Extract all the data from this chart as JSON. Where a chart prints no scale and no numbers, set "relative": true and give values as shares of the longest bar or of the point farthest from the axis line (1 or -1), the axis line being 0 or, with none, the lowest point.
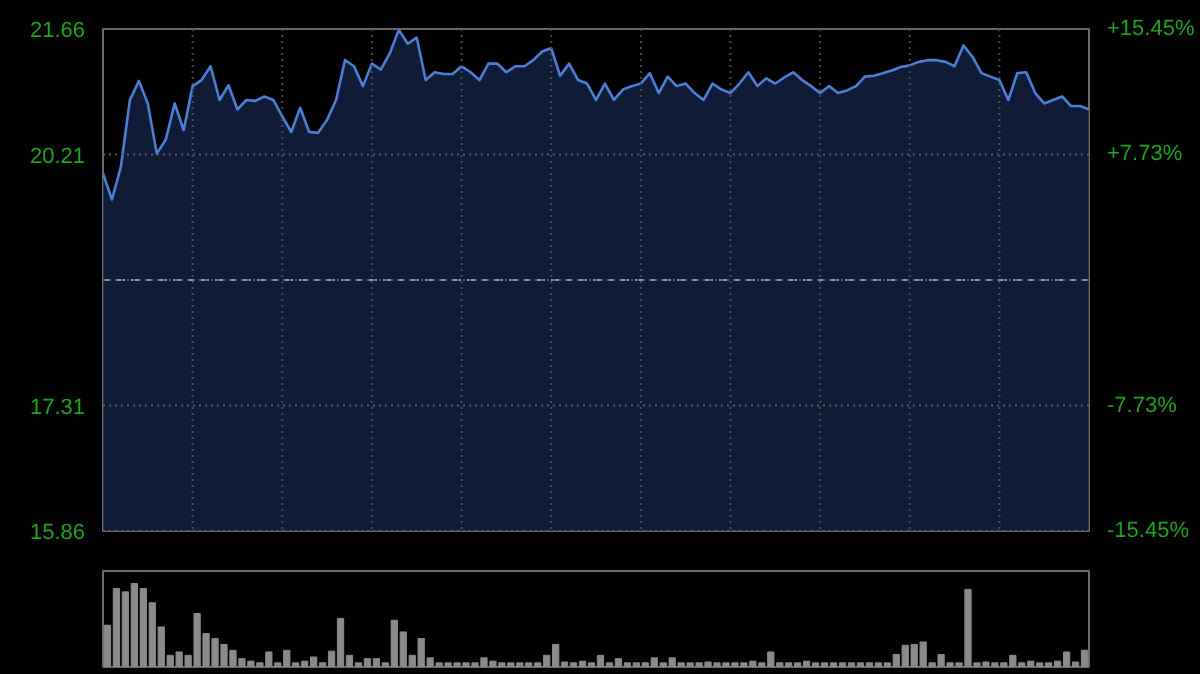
{
  "chart_data": [
    {
      "type": "area",
      "categories": [
        null,
        null,
        null,
        null,
        null,
        null,
        null,
        null,
        null,
        null,
        null,
        null,
        null,
        null,
        null,
        null,
        null,
        null,
        null,
        null,
        null,
        null,
        null,
        null,
        null,
        null,
        null,
        null,
        null,
        null,
        null,
        null,
        null,
        null,
        null,
        null,
        null,
        null,
        null,
        null,
        null,
        null,
        null,
        null,
        null,
        null,
        null,
        null,
        null,
        null,
        null,
        null,
        null,
        null,
        null,
        null,
        null,
        null,
        null,
        null,
        null,
        null,
        null,
        null,
        null,
        null,
        null,
        null,
        null,
        null,
        null,
        null,
        null,
        null,
        null,
        null,
        null,
        null,
        null,
        null,
        null,
        null,
        null,
        null,
        null,
        null,
        null,
        null,
        null,
        null,
        null,
        null,
        null,
        null,
        null,
        null,
        null,
        null,
        null,
        null,
        null,
        null,
        null,
        null,
        null,
        null,
        null,
        null,
        null,
        null,
        null
      ],
      "series": [
        {
          "color": "#4a7fd4",
          "values": [
            19.99,
            19.69,
            20.07,
            20.84,
            21.06,
            20.8,
            20.22,
            20.38,
            20.8,
            20.49,
            21.0,
            21.07,
            21.23,
            20.84,
            21.01,
            20.73,
            20.84,
            20.83,
            20.88,
            20.84,
            20.65,
            20.47,
            20.75,
            20.47,
            20.46,
            20.61,
            20.84,
            21.3,
            21.23,
            21.0,
            21.26,
            21.19,
            21.38,
            21.65,
            21.49,
            21.56,
            21.07,
            21.16,
            21.14,
            21.14,
            21.23,
            21.16,
            21.07,
            21.26,
            21.26,
            21.16,
            21.23,
            21.23,
            21.3,
            21.4,
            21.44,
            21.12,
            21.26,
            21.07,
            21.03,
            20.84,
            21.03,
            20.84,
            20.96,
            21.0,
            21.03,
            21.15,
            20.92,
            21.11,
            21.0,
            21.03,
            20.92,
            20.84,
            21.03,
            20.96,
            20.92,
            21.03,
            21.16,
            21.0,
            21.09,
            21.03,
            21.1,
            21.16,
            21.07,
            21.0,
            20.92,
            21.0,
            20.92,
            20.95,
            21.0,
            21.11,
            21.12,
            21.15,
            21.18,
            21.22,
            21.24,
            21.28,
            21.3,
            21.3,
            21.28,
            21.23,
            21.47,
            21.34,
            21.15,
            21.11,
            21.07,
            20.84,
            21.15,
            21.16,
            20.92,
            20.8,
            20.84,
            20.88,
            20.77,
            20.77,
            20.73
          ]
        }
      ],
      "ylim": [
        15.86,
        21.66
      ],
      "yticks": [
        15.86,
        17.31,
        {
          "value": 18.76,
          "label": null
        },
        20.21,
        21.66
      ],
      "y2lim": [
        -15.45,
        15.45
      ],
      "y2ticks": [
        {
          "value": -15.45,
          "label": "-15.45%"
        },
        {
          "value": -7.73,
          "label": "-7.73%"
        },
        {
          "value": 0,
          "label": null
        },
        {
          "value": 7.73,
          "label": "+7.73%"
        },
        {
          "value": 15.45,
          "label": "+15.45%"
        }
      ],
      "ref_lines": [
        {
          "axis": "y",
          "value": 18.76,
          "color": "#7f9fb0",
          "line_style": "dashed"
        }
      ],
      "grid": true,
      "tick_labels": "y"
    },
    {
      "type": "bar",
      "relative": true,
      "categories": [
        null,
        null,
        null,
        null,
        null,
        null,
        null,
        null,
        null,
        null,
        null,
        null,
        null,
        null,
        null,
        null,
        null,
        null,
        null,
        null,
        null,
        null,
        null,
        null,
        null,
        null,
        null,
        null,
        null,
        null,
        null,
        null,
        null,
        null,
        null,
        null,
        null,
        null,
        null,
        null,
        null,
        null,
        null,
        null,
        null,
        null,
        null,
        null,
        null,
        null,
        null,
        null,
        null,
        null,
        null,
        null,
        null,
        null,
        null,
        null,
        null,
        null,
        null,
        null,
        null,
        null,
        null,
        null,
        null,
        null,
        null,
        null,
        null,
        null,
        null,
        null,
        null,
        null,
        null,
        null,
        null,
        null,
        null,
        null,
        null,
        null,
        null,
        null,
        null,
        null,
        null,
        null,
        null,
        null,
        null,
        null,
        null,
        null,
        null,
        null,
        null,
        null,
        null,
        null,
        null,
        null,
        null,
        null,
        null,
        null
      ],
      "series": [
        {
          "color": "#8a8a8a",
          "values": [
            0.5,
            0.94,
            0.9,
            1.0,
            0.94,
            0.77,
            0.48,
            0.14,
            0.18,
            0.14,
            0.64,
            0.4,
            0.34,
            0.27,
            0.2,
            0.1,
            0.07,
            0.05,
            0.18,
            0.05,
            0.2,
            0.05,
            0.07,
            0.12,
            0.05,
            0.19,
            0.58,
            0.14,
            0.05,
            0.1,
            0.1,
            0.05,
            0.56,
            0.42,
            0.14,
            0.34,
            0.11,
            0.05,
            0.05,
            0.05,
            0.05,
            0.05,
            0.11,
            0.07,
            0.05,
            0.05,
            0.05,
            0.05,
            0.05,
            0.14,
            0.27,
            0.06,
            0.05,
            0.07,
            0.05,
            0.14,
            0.05,
            0.1,
            0.05,
            0.05,
            0.05,
            0.11,
            0.05,
            0.11,
            0.05,
            0.05,
            0.05,
            0.06,
            0.05,
            0.05,
            0.05,
            0.05,
            0.07,
            0.05,
            0.18,
            0.05,
            0.05,
            0.05,
            0.07,
            0.05,
            0.05,
            0.05,
            0.05,
            0.05,
            0.05,
            0.05,
            0.05,
            0.05,
            0.15,
            0.26,
            0.27,
            0.3,
            0.05,
            0.15,
            0.05,
            0.05,
            0.93,
            0.05,
            0.06,
            0.05,
            0.05,
            0.14,
            0.05,
            0.07,
            0.05,
            0.05,
            0.07,
            0.18,
            0.06,
            0.2
          ]
        }
      ]
    }
  ]
}
